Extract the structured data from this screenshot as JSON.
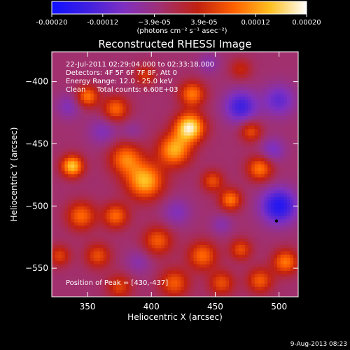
{
  "colorbar": {
    "min": -0.0002,
    "max": 0.0002,
    "ticks": [
      "-0.00020",
      "-0.00012",
      "−3.9e-05",
      "3.9e-05",
      "0.00012",
      "0.00020"
    ],
    "tick_values": [
      -0.0002,
      -0.00012,
      -3.9e-05,
      3.9e-05,
      0.00012,
      0.0002
    ],
    "units_label": "(photons cm⁻² s⁻¹ asec⁻²)",
    "colors": [
      "#1010ff",
      "#4020e0",
      "#8030c0",
      "#a03070",
      "#c02010",
      "#ff6000",
      "#ffc020",
      "#ffffff"
    ]
  },
  "chart_data": {
    "type": "heatmap",
    "title": "Reconstructed RHESSI Image",
    "xlabel": "Heliocentric X (arcsec)",
    "ylabel": "Heliocentric Y (arcsec)",
    "xlim": [
      322,
      515
    ],
    "ylim": [
      -573,
      -376
    ],
    "xticks": [
      350,
      400,
      450,
      500
    ],
    "yticks": [
      -400,
      -450,
      -500,
      -550
    ],
    "annotations": [
      "22-Jul-2011 02:29:04.000 to 02:33:18.000",
      "Detectors: 4F 5F 6F 7F 8F, Att 0",
      "Energy Range: 12.0 - 25.0 keV",
      "Clean     Total counts: 6.60E+03"
    ],
    "peak_label": "Position of Peak = [430,-437]",
    "peak": [
      430,
      -437
    ],
    "marker": [
      498,
      -512
    ],
    "sources": [
      {
        "x": 430,
        "y": -437,
        "amp": 1.0,
        "sigma": 8
      },
      {
        "x": 432,
        "y": -410,
        "amp": 0.6,
        "sigma": 7
      },
      {
        "x": 418,
        "y": -455,
        "amp": 0.75,
        "sigma": 9
      },
      {
        "x": 395,
        "y": -480,
        "amp": 0.8,
        "sigma": 10
      },
      {
        "x": 380,
        "y": -462,
        "amp": 0.6,
        "sigma": 9
      },
      {
        "x": 338,
        "y": -468,
        "amp": 0.85,
        "sigma": 6
      },
      {
        "x": 350,
        "y": -412,
        "amp": 0.6,
        "sigma": 6
      },
      {
        "x": 372,
        "y": -422,
        "amp": 0.55,
        "sigma": 7
      },
      {
        "x": 345,
        "y": -508,
        "amp": 0.55,
        "sigma": 8
      },
      {
        "x": 372,
        "y": -508,
        "amp": 0.55,
        "sigma": 7
      },
      {
        "x": 405,
        "y": -528,
        "amp": 0.5,
        "sigma": 8
      },
      {
        "x": 448,
        "y": -480,
        "amp": 0.45,
        "sigma": 6
      },
      {
        "x": 462,
        "y": -495,
        "amp": 0.6,
        "sigma": 6
      },
      {
        "x": 440,
        "y": -540,
        "amp": 0.55,
        "sigma": 8
      },
      {
        "x": 418,
        "y": -562,
        "amp": 0.5,
        "sigma": 8
      },
      {
        "x": 455,
        "y": -562,
        "amp": 0.45,
        "sigma": 7
      },
      {
        "x": 470,
        "y": -535,
        "amp": 0.45,
        "sigma": 6
      },
      {
        "x": 485,
        "y": -470,
        "amp": 0.6,
        "sigma": 7
      },
      {
        "x": 478,
        "y": -440,
        "amp": 0.45,
        "sigma": 6
      },
      {
        "x": 505,
        "y": -545,
        "amp": 0.6,
        "sigma": 7
      },
      {
        "x": 485,
        "y": -560,
        "amp": 0.5,
        "sigma": 7
      },
      {
        "x": 375,
        "y": -565,
        "amp": 0.4,
        "sigma": 7
      },
      {
        "x": 358,
        "y": -540,
        "amp": 0.45,
        "sigma": 7
      },
      {
        "x": 470,
        "y": -390,
        "amp": 0.3,
        "sigma": 6
      },
      {
        "x": 328,
        "y": -540,
        "amp": 0.4,
        "sigma": 6
      },
      {
        "x": 395,
        "y": -395,
        "amp": 0.35,
        "sigma": 6
      },
      {
        "x": 362,
        "y": -440,
        "amp": -0.25,
        "sigma": 8
      },
      {
        "x": 385,
        "y": -440,
        "amp": -0.15,
        "sigma": 6
      },
      {
        "x": 470,
        "y": -420,
        "amp": -0.55,
        "sigma": 9
      },
      {
        "x": 500,
        "y": -415,
        "amp": -0.4,
        "sigma": 9
      },
      {
        "x": 500,
        "y": -500,
        "amp": -0.7,
        "sigma": 10
      },
      {
        "x": 495,
        "y": -455,
        "amp": -0.3,
        "sigma": 7
      },
      {
        "x": 455,
        "y": -515,
        "amp": -0.2,
        "sigma": 6
      },
      {
        "x": 420,
        "y": -505,
        "amp": -0.25,
        "sigma": 8
      },
      {
        "x": 390,
        "y": -545,
        "amp": -0.2,
        "sigma": 7
      },
      {
        "x": 335,
        "y": -420,
        "amp": -0.25,
        "sigma": 7
      },
      {
        "x": 445,
        "y": -385,
        "amp": -0.2,
        "sigma": 6
      }
    ]
  },
  "footer": {
    "date_stamp": "9-Aug-2013 08:23"
  }
}
